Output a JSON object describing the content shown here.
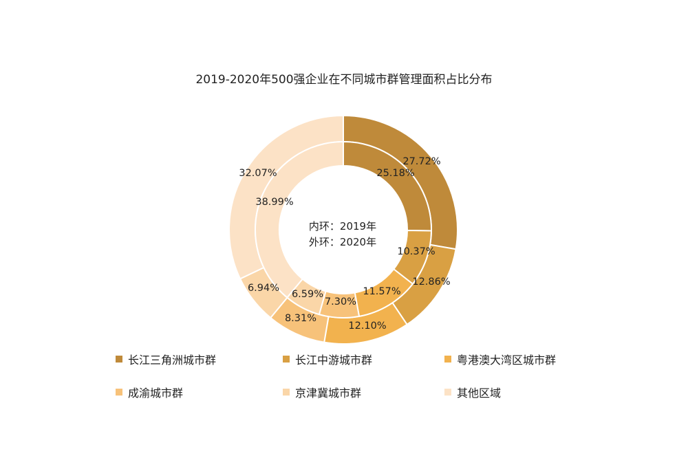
{
  "chart_data": {
    "type": "pie",
    "variant": "nested-donut",
    "title": "2019-2020年500强企业在不同城市群管理面积占比分布",
    "center_lines": [
      "内环：2019年",
      "外环：2020年"
    ],
    "categories": [
      "长江三角洲城市群",
      "长江中游城市群",
      "粤港澳大湾区城市群",
      "成渝城市群",
      "京津冀城市群",
      "其他区域"
    ],
    "colors": [
      "#BF8A3A",
      "#D9A043",
      "#F2B24E",
      "#F7C27A",
      "#FAD6A8",
      "#FCE2C6"
    ],
    "series": [
      {
        "ring": "outer",
        "values": [
          27.72,
          12.86,
          12.1,
          8.31,
          6.94,
          32.07
        ],
        "labels": [
          "27.72%",
          "12.86%",
          "12.10%",
          "8.31%",
          "6.94%",
          "32.07%"
        ]
      },
      {
        "ring": "inner",
        "values": [
          25.18,
          10.37,
          11.57,
          7.3,
          6.59,
          38.99
        ],
        "labels": [
          "25.18%",
          "10.37%",
          "11.57%",
          "7.30%",
          "6.59%",
          "38.99%"
        ]
      }
    ],
    "legend_position": "bottom"
  }
}
